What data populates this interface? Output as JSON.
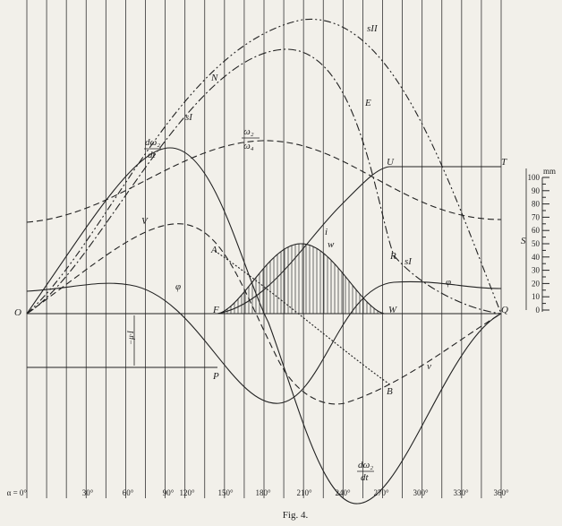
{
  "figure": {
    "caption": "Fig. 4.",
    "x_axis_labels": [
      "α = 0°",
      "30°",
      "60°",
      "90°",
      "120°",
      "150°",
      "180°",
      "210°",
      "240°",
      "270°",
      "300°",
      "330°",
      "360°"
    ],
    "scale": {
      "unit": "mm",
      "labels": [
        "0",
        "10",
        "20",
        "30",
        "40",
        "50",
        "60",
        "70",
        "80",
        "90",
        "100"
      ],
      "symbol": "S"
    },
    "labels": {
      "O": "O",
      "N": "N",
      "sII": "sII",
      "E": "E",
      "sI_top": "sI",
      "sI_right": "sI",
      "dw_top_num": "dω₂",
      "dw_top_den": "dt",
      "dw_bot_num": "dω₂",
      "dw_bot_den": "dt",
      "w_ratio_num": "ω₂",
      "w_ratio_den": "ω₄",
      "V": "V",
      "A": "A",
      "i": "i",
      "w": "w",
      "R": "R",
      "phi_left": "φ",
      "phi_right": "φ",
      "F": "F",
      "W": "W",
      "Q": "Q",
      "P": "P",
      "B": "B",
      "v": "v",
      "U": "U",
      "T": "T",
      "mu": "−μ·I"
    }
  }
}
